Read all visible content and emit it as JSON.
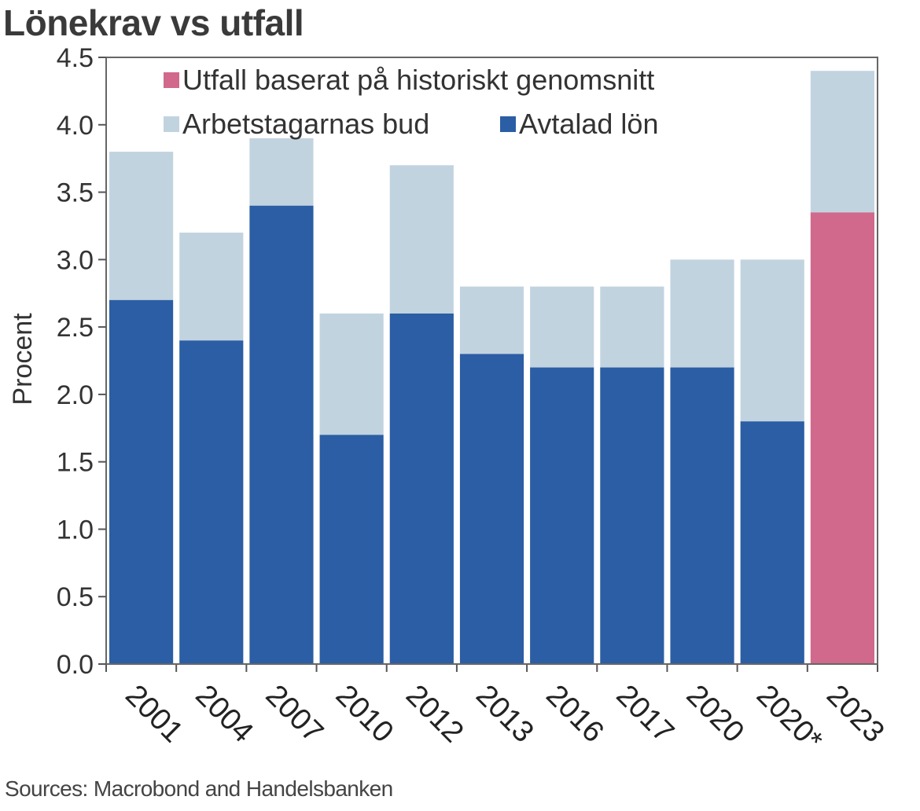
{
  "chart_data": {
    "type": "bar",
    "stacked": true,
    "title": "Lönekrav vs utfall",
    "ylabel": "Procent",
    "xlabel": "",
    "ylim": [
      0,
      4.5
    ],
    "yticks": [
      "0.0",
      "0.5",
      "1.0",
      "1.5",
      "2.0",
      "2.5",
      "3.0",
      "3.5",
      "4.0",
      "4.5"
    ],
    "grid": false,
    "legend_position": "top",
    "categories": [
      "2001",
      "2004",
      "2007",
      "2010",
      "2012",
      "2013",
      "2016",
      "2017",
      "2020",
      "2020*",
      "2023"
    ],
    "series": [
      {
        "name": "Avtalad lön",
        "color": "#2b5ea4",
        "values": [
          2.7,
          2.4,
          3.4,
          1.7,
          2.6,
          2.3,
          2.2,
          2.2,
          2.2,
          1.8,
          null
        ]
      },
      {
        "name": "Utfall baserat på historiskt genomsnitt",
        "color": "#d0698b",
        "values": [
          null,
          null,
          null,
          null,
          null,
          null,
          null,
          null,
          null,
          null,
          3.35
        ]
      },
      {
        "name": "Arbetstagarnas bud",
        "color": "#c2d3e0",
        "totals": [
          3.8,
          3.2,
          3.9,
          2.6,
          3.7,
          2.8,
          2.8,
          2.8,
          3.0,
          3.0,
          4.4
        ]
      }
    ],
    "legend": [
      {
        "label": "Utfall baserat på historiskt genomsnitt",
        "color": "#d0698b"
      },
      {
        "label": "Arbetstagarnas bud",
        "color": "#c2d3e0"
      },
      {
        "label": "Avtalad lön",
        "color": "#2b5ea4"
      }
    ],
    "source": "Sources: Macrobond and Handelsbanken"
  }
}
